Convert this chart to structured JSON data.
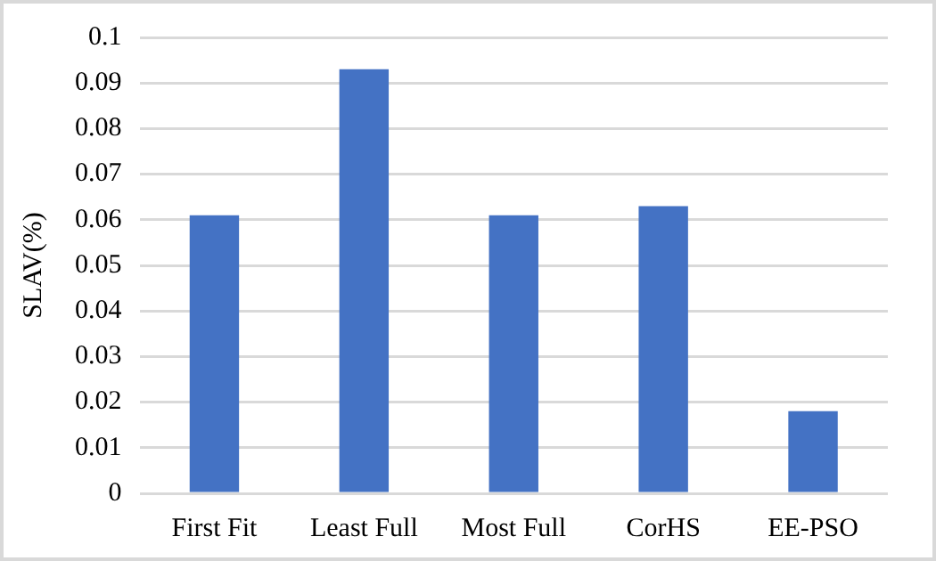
{
  "chart_data": {
    "type": "bar",
    "ylabel": "SLAV(%)",
    "categories": [
      "First Fit",
      "Least Full",
      "Most Full",
      "CorHS",
      "EE-PSO"
    ],
    "values": [
      0.061,
      0.093,
      0.061,
      0.063,
      0.018
    ],
    "color": "#4472c4",
    "ylim": [
      0,
      0.1
    ],
    "yticks": [
      0,
      0.01,
      0.02,
      0.03,
      0.04,
      0.05,
      0.06,
      0.07,
      0.08,
      0.09,
      0.1
    ],
    "grid": "y",
    "legend": false
  }
}
